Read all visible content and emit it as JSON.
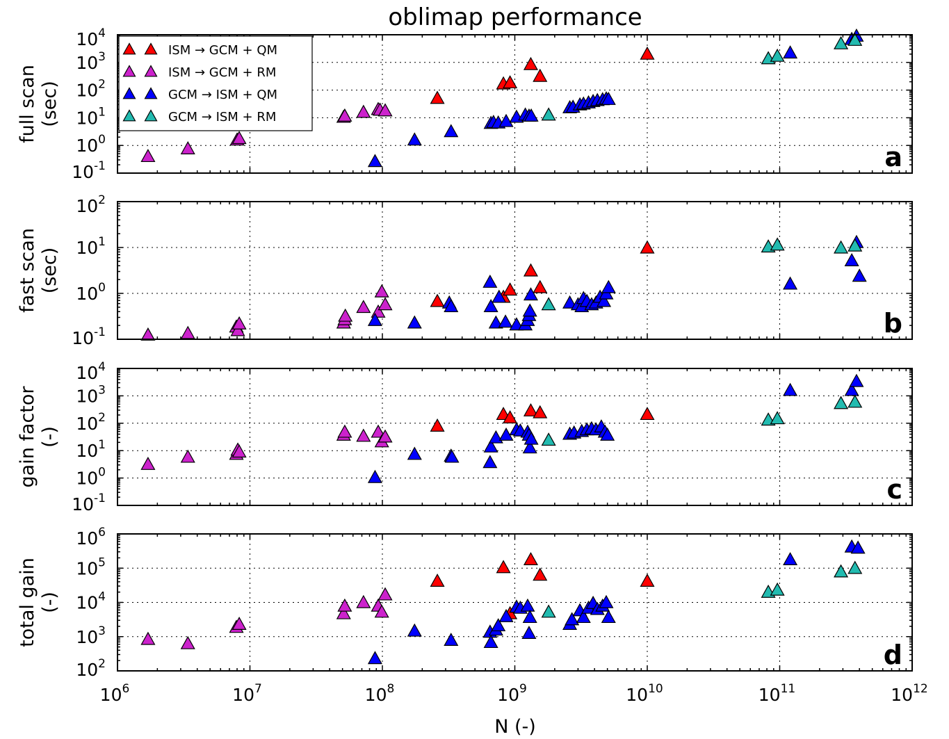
{
  "figure": {
    "title": "oblimap performance",
    "xlabel": "N (-)"
  },
  "chart_data": [
    {
      "id": "a",
      "type": "scatter",
      "panel_letter": "a",
      "ylabel_lines": [
        "full scan",
        "(sec)"
      ],
      "xscale": "log",
      "yscale": "log",
      "xlim": [
        1000000.0,
        1000000000000.0
      ],
      "ylim": [
        0.1,
        10000
      ],
      "grid": true,
      "legend_position": "top-left",
      "series": [
        {
          "name": "ISM → GCM + QM",
          "color": "#ff0000",
          "points": [
            [
              260000000.0,
              48
            ],
            [
              820000000.0,
              160
            ],
            [
              920000000.0,
              175
            ],
            [
              1320000000.0,
              800
            ],
            [
              1550000000.0,
              300
            ],
            [
              10000000000.0,
              1900
            ]
          ]
        },
        {
          "name": "ISM → GCM + RM",
          "color": "#cc22cc",
          "points": [
            [
              1700000.0,
              0.38
            ],
            [
              3400000.0,
              0.72
            ],
            [
              8000000.0,
              1.5
            ],
            [
              8300000.0,
              1.7
            ],
            [
              51000000.0,
              10
            ],
            [
              52000000.0,
              11
            ],
            [
              72000000.0,
              15
            ],
            [
              93000000.0,
              19
            ],
            [
              96000000.0,
              18
            ],
            [
              105000000.0,
              17
            ]
          ]
        },
        {
          "name": "GCM → ISM + QM",
          "color": "#0000ff",
          "points": [
            [
              88000000.0,
              0.25
            ],
            [
              175000000.0,
              1.5
            ],
            [
              330000000.0,
              3
            ],
            [
              660000000.0,
              6
            ],
            [
              690000000.0,
              6.5
            ],
            [
              750000000.0,
              6.2
            ],
            [
              860000000.0,
              7
            ],
            [
              1030000000.0,
              10
            ],
            [
              1200000000.0,
              12
            ],
            [
              1280000000.0,
              11
            ],
            [
              1330000000.0,
              11
            ],
            [
              2600000000.0,
              22
            ],
            [
              2750000000.0,
              23
            ],
            [
              3100000000.0,
              28
            ],
            [
              3300000000.0,
              30
            ],
            [
              3600000000.0,
              33
            ],
            [
              3900000000.0,
              37
            ],
            [
              4200000000.0,
              40
            ],
            [
              4600000000.0,
              43
            ],
            [
              4900000000.0,
              46
            ],
            [
              5100000000.0,
              44
            ],
            [
              120000000000.0,
              2100
            ],
            [
              350000000000.0,
              6500
            ],
            [
              380000000000.0,
              8500
            ]
          ]
        },
        {
          "name": "GCM → ISM + RM",
          "color": "#22bbb0",
          "points": [
            [
              1800000000.0,
              12
            ],
            [
              82000000000.0,
              1300
            ],
            [
              96000000000.0,
              1600
            ],
            [
              290000000000.0,
              4500
            ],
            [
              370000000000.0,
              6000
            ]
          ]
        }
      ]
    },
    {
      "id": "b",
      "type": "scatter",
      "panel_letter": "b",
      "ylabel_lines": [
        "fast scan",
        "(sec)"
      ],
      "xscale": "log",
      "yscale": "log",
      "xlim": [
        1000000.0,
        1000000000000.0
      ],
      "ylim": [
        0.1,
        100
      ],
      "grid": true,
      "series": [
        {
          "name": "ISM → GCM + QM",
          "color": "#ff0000",
          "points": [
            [
              260000000.0,
              0.65
            ],
            [
              820000000.0,
              0.8
            ],
            [
              920000000.0,
              1.15
            ],
            [
              1320000000.0,
              3.0
            ],
            [
              1550000000.0,
              1.3
            ],
            [
              10000000000.0,
              9.5
            ]
          ]
        },
        {
          "name": "ISM → GCM + RM",
          "color": "#cc22cc",
          "points": [
            [
              1700000.0,
              0.12
            ],
            [
              3400000.0,
              0.13
            ],
            [
              7900000.0,
              0.18
            ],
            [
              8100000.0,
              0.15
            ],
            [
              8300000.0,
              0.21
            ],
            [
              51000000.0,
              0.22
            ],
            [
              52000000.0,
              0.26
            ],
            [
              52500000.0,
              0.31
            ],
            [
              72000000.0,
              0.48
            ],
            [
              93000000.0,
              0.38
            ],
            [
              99000000.0,
              1.05
            ],
            [
              105000000.0,
              0.55
            ]
          ]
        },
        {
          "name": "GCM → ISM + QM",
          "color": "#0000ff",
          "points": [
            [
              88000000.0,
              0.25
            ],
            [
              175000000.0,
              0.22
            ],
            [
              320000000.0,
              0.6
            ],
            [
              330000000.0,
              0.5
            ],
            [
              650000000.0,
              1.7
            ],
            [
              660000000.0,
              0.5
            ],
            [
              720000000.0,
              0.22
            ],
            [
              760000000.0,
              0.8
            ],
            [
              850000000.0,
              0.23
            ],
            [
              1030000000.0,
              0.2
            ],
            [
              1200000000.0,
              0.2
            ],
            [
              1250000000.0,
              0.25
            ],
            [
              1280000000.0,
              0.32
            ],
            [
              1300000000.0,
              0.4
            ],
            [
              1320000000.0,
              0.9
            ],
            [
              2600000000.0,
              0.6
            ],
            [
              3000000000.0,
              0.55
            ],
            [
              3200000000.0,
              0.5
            ],
            [
              3300000000.0,
              0.75
            ],
            [
              3500000000.0,
              0.65
            ],
            [
              3800000000.0,
              0.55
            ],
            [
              4100000000.0,
              0.6
            ],
            [
              4400000000.0,
              0.8
            ],
            [
              4700000000.0,
              0.65
            ],
            [
              4900000000.0,
              0.95
            ],
            [
              5100000000.0,
              1.3
            ],
            [
              120000000000.0,
              1.55
            ],
            [
              350000000000.0,
              5.0
            ],
            [
              380000000000.0,
              12.5
            ],
            [
              400000000000.0,
              2.3
            ]
          ]
        },
        {
          "name": "GCM → ISM + RM",
          "color": "#22bbb0",
          "points": [
            [
              1800000000.0,
              0.55
            ],
            [
              82000000000.0,
              10
            ],
            [
              96000000000.0,
              11
            ],
            [
              290000000000.0,
              9.5
            ],
            [
              370000000000.0,
              10.5
            ]
          ]
        }
      ]
    },
    {
      "id": "c",
      "type": "scatter",
      "panel_letter": "c",
      "ylabel_lines": [
        "gain factor",
        "(-)"
      ],
      "xscale": "log",
      "yscale": "log",
      "xlim": [
        1000000.0,
        1000000000000.0
      ],
      "ylim": [
        0.1,
        10000
      ],
      "grid": true,
      "series": [
        {
          "name": "ISM → GCM + QM",
          "color": "#ff0000",
          "points": [
            [
              260000000.0,
              75
            ],
            [
              820000000.0,
              200
            ],
            [
              920000000.0,
              150
            ],
            [
              1320000000.0,
              270
            ],
            [
              1550000000.0,
              230
            ],
            [
              10000000000.0,
              200
            ]
          ]
        },
        {
          "name": "ISM → GCM + RM",
          "color": "#cc22cc",
          "points": [
            [
              1700000.0,
              3
            ],
            [
              3400000.0,
              5.5
            ],
            [
              7900000.0,
              7
            ],
            [
              8100000.0,
              10
            ],
            [
              8300000.0,
              8.5
            ],
            [
              51000000.0,
              35
            ],
            [
              52000000.0,
              45
            ],
            [
              72000000.0,
              32
            ],
            [
              93000000.0,
              45
            ],
            [
              99000000.0,
              20
            ],
            [
              105000000.0,
              30
            ]
          ]
        },
        {
          "name": "GCM → ISM + QM",
          "color": "#0000ff",
          "points": [
            [
              88000000.0,
              1
            ],
            [
              175000000.0,
              7
            ],
            [
              330000000.0,
              6
            ],
            [
              335000000.0,
              5.5
            ],
            [
              650000000.0,
              3.5
            ],
            [
              660000000.0,
              13
            ],
            [
              720000000.0,
              28
            ],
            [
              860000000.0,
              35
            ],
            [
              1030000000.0,
              55
            ],
            [
              1100000000.0,
              50
            ],
            [
              1250000000.0,
              45
            ],
            [
              1280000000.0,
              35
            ],
            [
              1300000000.0,
              12
            ],
            [
              1330000000.0,
              25
            ],
            [
              2600000000.0,
              38
            ],
            [
              2800000000.0,
              42
            ],
            [
              3200000000.0,
              48
            ],
            [
              3500000000.0,
              55
            ],
            [
              3800000000.0,
              60
            ],
            [
              4100000000.0,
              55
            ],
            [
              4500000000.0,
              70
            ],
            [
              4800000000.0,
              45
            ],
            [
              5000000000.0,
              35
            ],
            [
              120000000000.0,
              1500
            ],
            [
              350000000000.0,
              1500
            ],
            [
              380000000000.0,
              3200
            ]
          ]
        },
        {
          "name": "GCM → ISM + RM",
          "color": "#22bbb0",
          "points": [
            [
              1800000000.0,
              23
            ],
            [
              82000000000.0,
              125
            ],
            [
              96000000000.0,
              140
            ],
            [
              290000000000.0,
              500
            ],
            [
              370000000000.0,
              560
            ]
          ]
        }
      ]
    },
    {
      "id": "d",
      "type": "scatter",
      "panel_letter": "d",
      "ylabel_lines": [
        "total gain",
        "(-)"
      ],
      "xscale": "log",
      "yscale": "log",
      "xlim": [
        1000000.0,
        1000000000000.0
      ],
      "ylim": [
        100,
        1000000
      ],
      "grid": true,
      "series": [
        {
          "name": "ISM → GCM + QM",
          "color": "#ff0000",
          "points": [
            [
              260000000.0,
              40000
            ],
            [
              820000000.0,
              100000
            ],
            [
              920000000.0,
              4500
            ],
            [
              1320000000.0,
              170000
            ],
            [
              1550000000.0,
              60000
            ],
            [
              10000000000.0,
              40000
            ]
          ]
        },
        {
          "name": "ISM → GCM + RM",
          "color": "#cc22cc",
          "points": [
            [
              1700000.0,
              800
            ],
            [
              3400000.0,
              600
            ],
            [
              7900000.0,
              1800
            ],
            [
              8300000.0,
              2200
            ],
            [
              51000000.0,
              4500
            ],
            [
              52000000.0,
              7500
            ],
            [
              72000000.0,
              9500
            ],
            [
              93000000.0,
              7500
            ],
            [
              99000000.0,
              5000
            ],
            [
              105000000.0,
              16000
            ]
          ]
        },
        {
          "name": "GCM → ISM + QM",
          "color": "#0000ff",
          "points": [
            [
              88000000.0,
              220
            ],
            [
              175000000.0,
              1400
            ],
            [
              330000000.0,
              750
            ],
            [
              650000000.0,
              1300
            ],
            [
              660000000.0,
              650
            ],
            [
              720000000.0,
              1500
            ],
            [
              750000000.0,
              2000
            ],
            [
              860000000.0,
              3700
            ],
            [
              1030000000.0,
              7000
            ],
            [
              1100000000.0,
              6500
            ],
            [
              1250000000.0,
              7500
            ],
            [
              1280000000.0,
              1200
            ],
            [
              1300000000.0,
              3500
            ],
            [
              2600000000.0,
              2200
            ],
            [
              2700000000.0,
              3000
            ],
            [
              3100000000.0,
              5500
            ],
            [
              3300000000.0,
              3500
            ],
            [
              3600000000.0,
              6500
            ],
            [
              3900000000.0,
              9000
            ],
            [
              4200000000.0,
              6000
            ],
            [
              4600000000.0,
              7500
            ],
            [
              4900000000.0,
              9500
            ],
            [
              5100000000.0,
              3500
            ],
            [
              120000000000.0,
              170000
            ],
            [
              350000000000.0,
              400000
            ],
            [
              390000000000.0,
              370000
            ]
          ]
        },
        {
          "name": "GCM → ISM + RM",
          "color": "#22bbb0",
          "points": [
            [
              1800000000.0,
              5000
            ],
            [
              82000000000.0,
              19000
            ],
            [
              96000000000.0,
              22000
            ],
            [
              290000000000.0,
              75000
            ],
            [
              370000000000.0,
              95000
            ]
          ]
        }
      ]
    }
  ]
}
